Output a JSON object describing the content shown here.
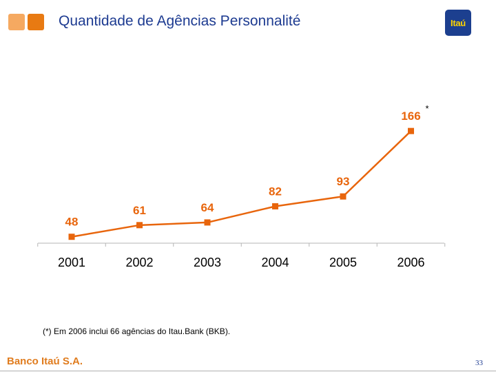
{
  "slide": {
    "title": "Quantidade de Agências Personnalité",
    "footnote": "(*) Em 2006 inclui 66 agências do Itau.Bank (BKB).",
    "bank_name": "Banco Itaú S.A.",
    "page_number": "33",
    "logo_text": "Itaú"
  },
  "colors": {
    "title": "#1d3b91",
    "series": "#e8650c",
    "label": "#e8650c",
    "bank_name": "#e07c1e"
  },
  "chart_data": {
    "type": "line",
    "title": "",
    "xlabel": "",
    "ylabel": "",
    "categories": [
      "2001",
      "2002",
      "2003",
      "2004",
      "2005",
      "2006"
    ],
    "values": [
      48,
      61,
      64,
      82,
      93,
      166
    ],
    "data_labels": [
      "48",
      "61",
      "64",
      "82",
      "93",
      "166"
    ],
    "annotations": [
      {
        "category": "2006",
        "text": "*"
      }
    ],
    "ylim": [
      0,
      180
    ],
    "grid": false,
    "legend": "none"
  }
}
